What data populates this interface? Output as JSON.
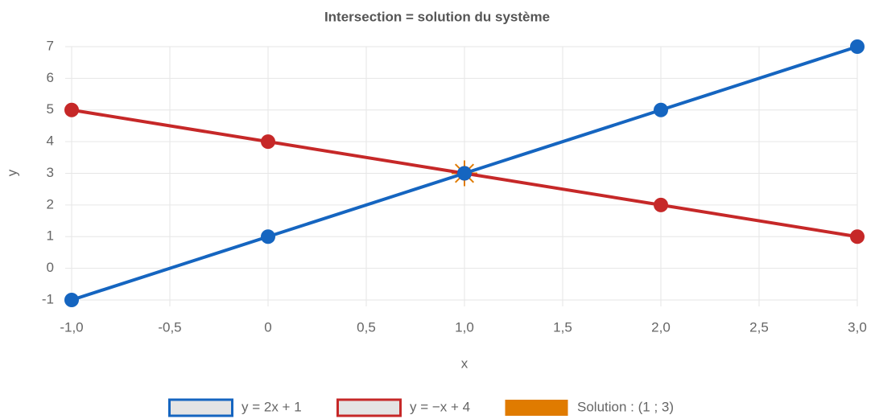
{
  "chart_data": {
    "type": "line",
    "title": "Intersection = solution du système",
    "xlabel": "x",
    "ylabel": "y",
    "x": [
      -1,
      0,
      1,
      2,
      3
    ],
    "series": [
      {
        "name": "y = 2x + 1",
        "color": "#1565c0",
        "values": [
          -1,
          1,
          3,
          5,
          7
        ]
      },
      {
        "name": "y = −x + 4",
        "color": "#c62828",
        "values": [
          5,
          4,
          3,
          2,
          1
        ]
      },
      {
        "name": "Solution : (1 ; 3)",
        "color": "#e07b00",
        "marker": "star",
        "x": [
          1
        ],
        "values": [
          3
        ]
      }
    ],
    "xlim": [
      -1,
      3
    ],
    "xticks": [
      {
        "value": -1,
        "label": "-1,0"
      },
      {
        "value": -0.5,
        "label": "-0,5"
      },
      0,
      {
        "value": 0.5,
        "label": "0,5"
      },
      {
        "value": 1,
        "label": "1,0"
      },
      {
        "value": 1.5,
        "label": "1,5"
      },
      {
        "value": 2,
        "label": "2,0"
      },
      {
        "value": 2.5,
        "label": "2,5"
      },
      {
        "value": 3,
        "label": "3,0"
      }
    ],
    "ylim": [
      -1,
      7
    ],
    "yticks": [
      -1,
      0,
      1,
      2,
      3,
      4,
      5,
      6,
      7
    ],
    "grid": true,
    "legend": "bottom"
  }
}
